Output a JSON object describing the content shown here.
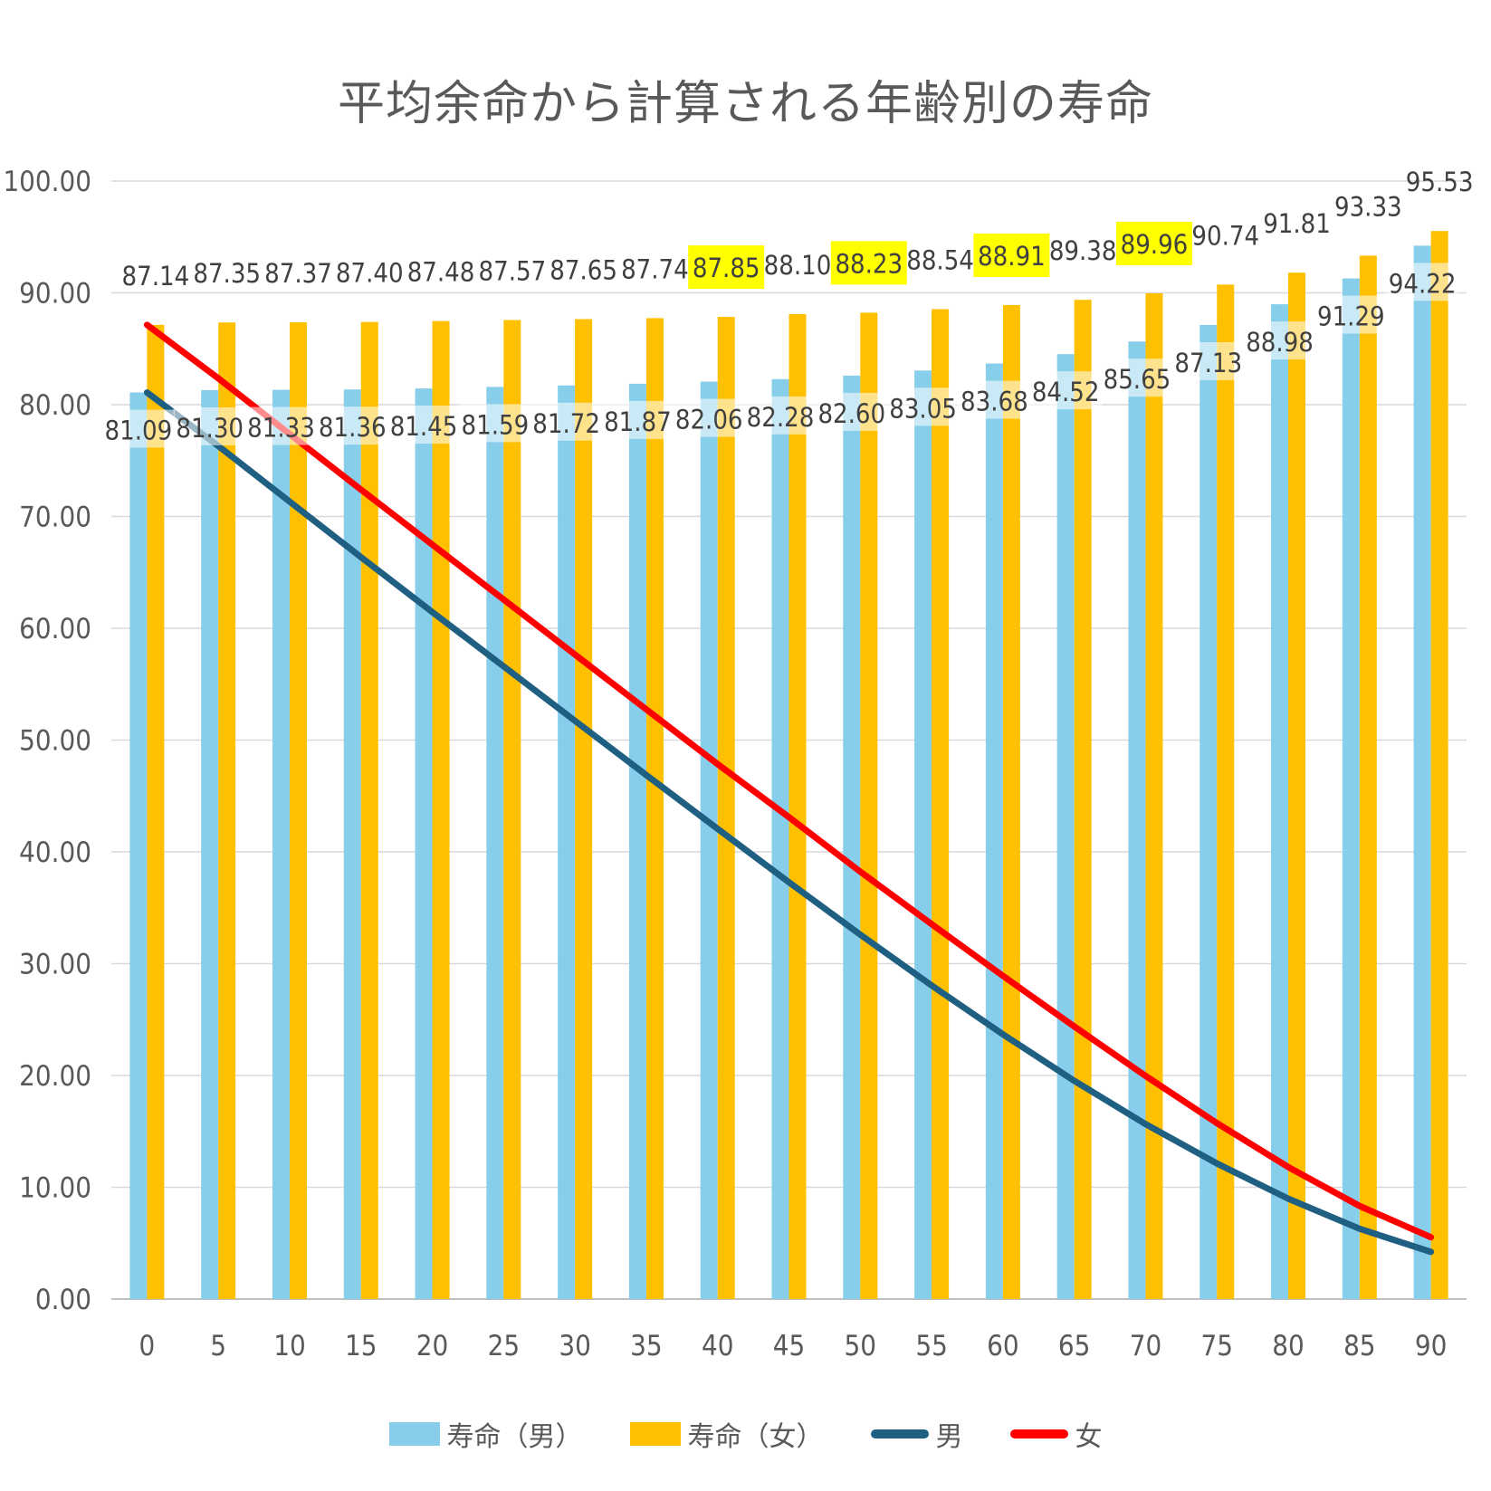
{
  "chart_data": {
    "type": "bar",
    "title": "平均余命から計算される年齢別の寿命",
    "xlabel": "",
    "ylabel": "",
    "categories": [
      "0",
      "5",
      "10",
      "15",
      "20",
      "25",
      "30",
      "35",
      "40",
      "45",
      "50",
      "55",
      "60",
      "65",
      "70",
      "75",
      "80",
      "85",
      "90"
    ],
    "ylim": [
      0,
      100
    ],
    "yticks": [
      "0.00",
      "10.00",
      "20.00",
      "30.00",
      "40.00",
      "50.00",
      "60.00",
      "70.00",
      "80.00",
      "90.00",
      "100.00"
    ],
    "grid": true,
    "legend_position": "bottom",
    "series": [
      {
        "name": "寿命（男）",
        "kind": "bar",
        "color": "#87CEEB",
        "values": [
          81.09,
          81.3,
          81.33,
          81.36,
          81.45,
          81.59,
          81.72,
          81.87,
          82.06,
          82.28,
          82.6,
          83.05,
          83.68,
          84.52,
          85.65,
          87.13,
          88.98,
          91.29,
          94.22
        ],
        "labels": [
          "81.09",
          "81.30",
          "81.33",
          "81.36",
          "81.45",
          "81.59",
          "81.72",
          "81.87",
          "82.06",
          "82.28",
          "82.60",
          "83.05",
          "83.68",
          "84.52",
          "85.65",
          "87.13",
          "88.98",
          "91.29",
          "94.22"
        ]
      },
      {
        "name": "寿命（女）",
        "kind": "bar",
        "color": "#FFC000",
        "values": [
          87.14,
          87.35,
          87.37,
          87.4,
          87.48,
          87.57,
          87.65,
          87.74,
          87.85,
          88.1,
          88.23,
          88.54,
          88.91,
          89.38,
          89.96,
          90.74,
          91.81,
          93.33,
          95.53
        ],
        "labels": [
          "87.14",
          "87.35",
          "87.37",
          "87.40",
          "87.48",
          "87.57",
          "87.65",
          "87.74",
          "87.85",
          "88.10",
          "88.23",
          "88.54",
          "88.91",
          "89.38",
          "89.96",
          "90.74",
          "91.81",
          "93.33",
          "95.53"
        ],
        "highlighted_labels": [
          "87.85",
          "88.23",
          "88.91",
          "89.96"
        ],
        "highlight_color": "#FFFF00"
      },
      {
        "name": "男",
        "kind": "line",
        "color": "#1F5F82",
        "values": [
          81.09,
          76.3,
          71.33,
          66.36,
          61.45,
          56.59,
          51.72,
          46.87,
          42.06,
          37.28,
          32.6,
          28.05,
          23.68,
          19.52,
          15.65,
          12.13,
          8.98,
          6.29,
          4.22
        ]
      },
      {
        "name": "女",
        "kind": "line",
        "color": "#FF0000",
        "values": [
          87.14,
          82.35,
          77.37,
          72.4,
          67.48,
          62.57,
          57.65,
          52.74,
          47.85,
          43.1,
          38.23,
          33.54,
          28.91,
          24.38,
          19.96,
          15.74,
          11.81,
          8.33,
          5.53
        ]
      }
    ]
  }
}
